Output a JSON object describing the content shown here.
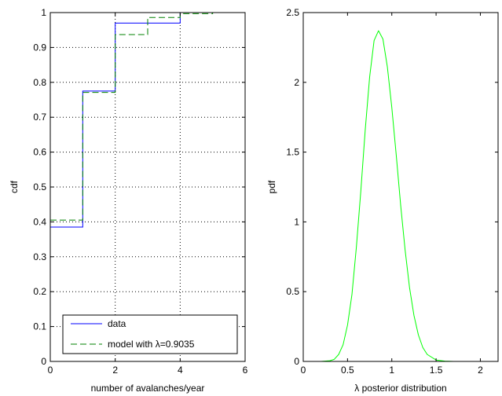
{
  "chart_data": [
    {
      "type": "line",
      "ylabel": "cdf",
      "xlabel": "number of avalanches/year",
      "xlim": [
        0,
        6
      ],
      "ylim": [
        0,
        1
      ],
      "xticks": [
        "0",
        "2",
        "4",
        "6"
      ],
      "yticks": [
        "0",
        "0.1",
        "0.2",
        "0.3",
        "0.4",
        "0.5",
        "0.6",
        "0.7",
        "0.8",
        "0.9",
        "1"
      ],
      "xtick_values": [
        0,
        2,
        4,
        6
      ],
      "ytick_values": [
        0,
        0.1,
        0.2,
        0.3,
        0.4,
        0.5,
        0.6,
        0.7,
        0.8,
        0.9,
        1
      ],
      "grid": "dotted",
      "legend_position": "bottom-left",
      "series": [
        {
          "name": "data",
          "style": "solid",
          "color": "#0000ff",
          "step": true,
          "x": [
            0,
            1,
            2,
            3,
            4,
            5
          ],
          "y": [
            0.385,
            0.775,
            0.97,
            0.97,
            1.0,
            1.0
          ]
        },
        {
          "name": "model with λ=0.9035",
          "style": "dashed",
          "color": "#008000",
          "step": true,
          "x": [
            0,
            1,
            2,
            3,
            4,
            5
          ],
          "y": [
            0.405,
            0.771,
            0.937,
            0.986,
            0.997,
            0.9995
          ]
        }
      ]
    },
    {
      "type": "line",
      "ylabel": "pdf",
      "xlabel": "λ posterior distribution",
      "xlim": [
        0,
        2.2
      ],
      "ylim": [
        0,
        2.5
      ],
      "xticks": [
        "0",
        "0.5",
        "1",
        "1.5",
        "2"
      ],
      "yticks": [
        "0",
        "0.5",
        "1",
        "1.5",
        "2",
        "2.5"
      ],
      "xtick_values": [
        0,
        0.5,
        1,
        1.5,
        2
      ],
      "ytick_values": [
        0,
        0.5,
        1,
        1.5,
        2,
        2.5
      ],
      "grid": "off",
      "series": [
        {
          "color": "#00ff00",
          "style": "solid",
          "x": [
            0.1,
            0.2,
            0.3,
            0.35,
            0.4,
            0.45,
            0.5,
            0.55,
            0.6,
            0.65,
            0.7,
            0.75,
            0.8,
            0.85,
            0.9,
            0.95,
            1.0,
            1.05,
            1.1,
            1.15,
            1.2,
            1.25,
            1.3,
            1.35,
            1.4,
            1.5,
            1.6,
            1.7,
            1.8,
            2.0,
            2.2
          ],
          "y": [
            0.0,
            0.0,
            0.005,
            0.015,
            0.05,
            0.12,
            0.26,
            0.48,
            0.82,
            1.22,
            1.66,
            2.04,
            2.3,
            2.37,
            2.31,
            2.11,
            1.82,
            1.48,
            1.12,
            0.8,
            0.53,
            0.33,
            0.19,
            0.1,
            0.05,
            0.01,
            0.002,
            0.0,
            0.0,
            0.0,
            0.0
          ]
        }
      ]
    }
  ]
}
